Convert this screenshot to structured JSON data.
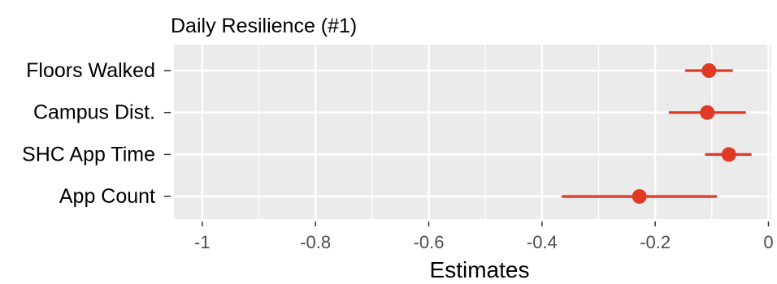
{
  "chart_data": {
    "type": "forest",
    "title": "Daily Resilience (#1)",
    "xlabel": "Estimates",
    "ylabel": "",
    "xlim": [
      -1.05,
      0.005
    ],
    "x_ticks": [
      -1,
      -0.8,
      -0.6,
      -0.4,
      -0.2,
      0
    ],
    "x_tick_labels": [
      "-1",
      "-0.8",
      "-0.6",
      "-0.4",
      "-0.2",
      "0"
    ],
    "categories": [
      "Floors Walked",
      "Campus Dist.",
      "SHC App Time",
      "App Count"
    ],
    "estimates": [
      -0.105,
      -0.108,
      -0.07,
      -0.228
    ],
    "ci_low": [
      -0.147,
      -0.176,
      -0.112,
      -0.365
    ],
    "ci_high": [
      -0.063,
      -0.04,
      -0.03,
      -0.091
    ],
    "grid": true,
    "colors": {
      "point": "#e03a24",
      "panel": "#ebebeb",
      "grid": "#ffffff"
    }
  }
}
